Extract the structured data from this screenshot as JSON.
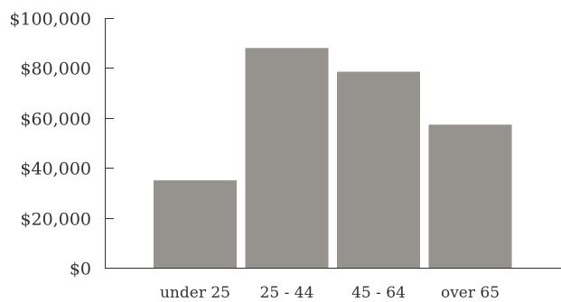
{
  "chart_data": {
    "type": "bar",
    "categories": [
      "under 25",
      "25 - 44",
      "45 - 64",
      "over 65"
    ],
    "values": [
      35000,
      88000,
      78500,
      57300
    ],
    "ylim": [
      0,
      100000
    ],
    "yticks": [
      0,
      20000,
      40000,
      60000,
      80000,
      100000
    ],
    "ytick_labels": [
      "$0",
      "$20,000",
      "$40,000",
      "$60,000",
      "$80,000",
      "$100,000"
    ],
    "grid": false,
    "legend": "none",
    "bar_color": "#96928e",
    "axis_color": "#333333"
  }
}
